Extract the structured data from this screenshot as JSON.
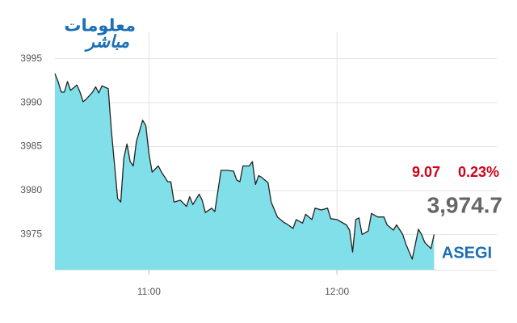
{
  "logo": [
    "معلومات",
    "مباشر"
  ],
  "chart_data": {
    "type": "area",
    "x": [
      "10:30",
      "10:31",
      "10:32",
      "10:33",
      "10:34",
      "10:35",
      "10:37",
      "10:38",
      "10:39",
      "10:40",
      "10:42",
      "10:43",
      "10:44",
      "10:45",
      "10:47",
      "10:48",
      "10:50",
      "10:51",
      "10:52",
      "10:53",
      "10:54",
      "10:55",
      "10:56",
      "10:58",
      "10:59",
      "11:00",
      "11:01",
      "11:03",
      "11:04",
      "11:06",
      "11:07",
      "11:08",
      "11:10",
      "11:12",
      "11:13",
      "11:14",
      "11:16",
      "11:17",
      "11:18",
      "11:20",
      "11:21",
      "11:23",
      "11:25",
      "11:27",
      "11:28",
      "11:29",
      "11:30",
      "11:32",
      "11:33",
      "11:34",
      "11:35",
      "11:36",
      "11:38",
      "11:39",
      "11:41",
      "11:43",
      "11:44",
      "11:46",
      "11:47",
      "11:49",
      "11:50",
      "11:52",
      "11:53",
      "11:55",
      "11:57",
      "11:58",
      "12:00",
      "12:01",
      "12:03",
      "12:04",
      "12:05",
      "12:06",
      "12:07",
      "12:08",
      "12:10",
      "12:11",
      "12:13",
      "12:15",
      "12:16",
      "12:18",
      "12:19",
      "12:21",
      "12:22",
      "12:24",
      "12:26",
      "12:27",
      "12:28",
      "12:30",
      "12:31"
    ],
    "values": [
      3993.3,
      3992.4,
      3991.2,
      3991.2,
      3992.4,
      3991.4,
      3992.0,
      3991.2,
      3990.1,
      3990.4,
      3991.2,
      3991.8,
      3991.1,
      3991.9,
      3991.6,
      3986.9,
      3979.1,
      3978.7,
      3983.7,
      3985.3,
      3983.3,
      3982.8,
      3985.6,
      3988.0,
      3987.4,
      3984.2,
      3982.1,
      3982.8,
      3982.1,
      3981.0,
      3981.0,
      3978.7,
      3978.9,
      3978.2,
      3979.3,
      3978.4,
      3979.6,
      3978.9,
      3977.5,
      3978.0,
      3977.6,
      3982.3,
      3982.3,
      3982.2,
      3981.2,
      3981.0,
      3982.8,
      3982.8,
      3983.3,
      3980.7,
      3981.7,
      3981.5,
      3980.9,
      3978.7,
      3977.0,
      3976.4,
      3976.2,
      3975.7,
      3976.7,
      3976.3,
      3977.3,
      3976.7,
      3978.0,
      3977.8,
      3978.0,
      3976.8,
      3976.7,
      3976.5,
      3976.1,
      3975.5,
      3973.0,
      3976.7,
      3976.9,
      3975.0,
      3975.4,
      3977.4,
      3977.0,
      3977.0,
      3976.1,
      3975.5,
      3976.1,
      3975.0,
      3973.9,
      3972.2,
      3975.6,
      3975.0,
      3974.1,
      3973.4,
      3975.0
    ],
    "color": "#80dfe8",
    "line_color": "#222222",
    "xlim": [
      "10:30",
      "12:51"
    ],
    "xticks": [
      "11:00",
      "12:00"
    ],
    "ylim": [
      3971,
      3998
    ],
    "yticks": [
      3975,
      3980,
      3985,
      3990,
      3995
    ],
    "grid": true,
    "change": 9.07,
    "change_percent": {
      "value": 0.23,
      "label": "0.23%"
    },
    "last_price": {
      "value": 3974.7,
      "label": "3,974.7"
    },
    "symbol": "ASEGI"
  }
}
